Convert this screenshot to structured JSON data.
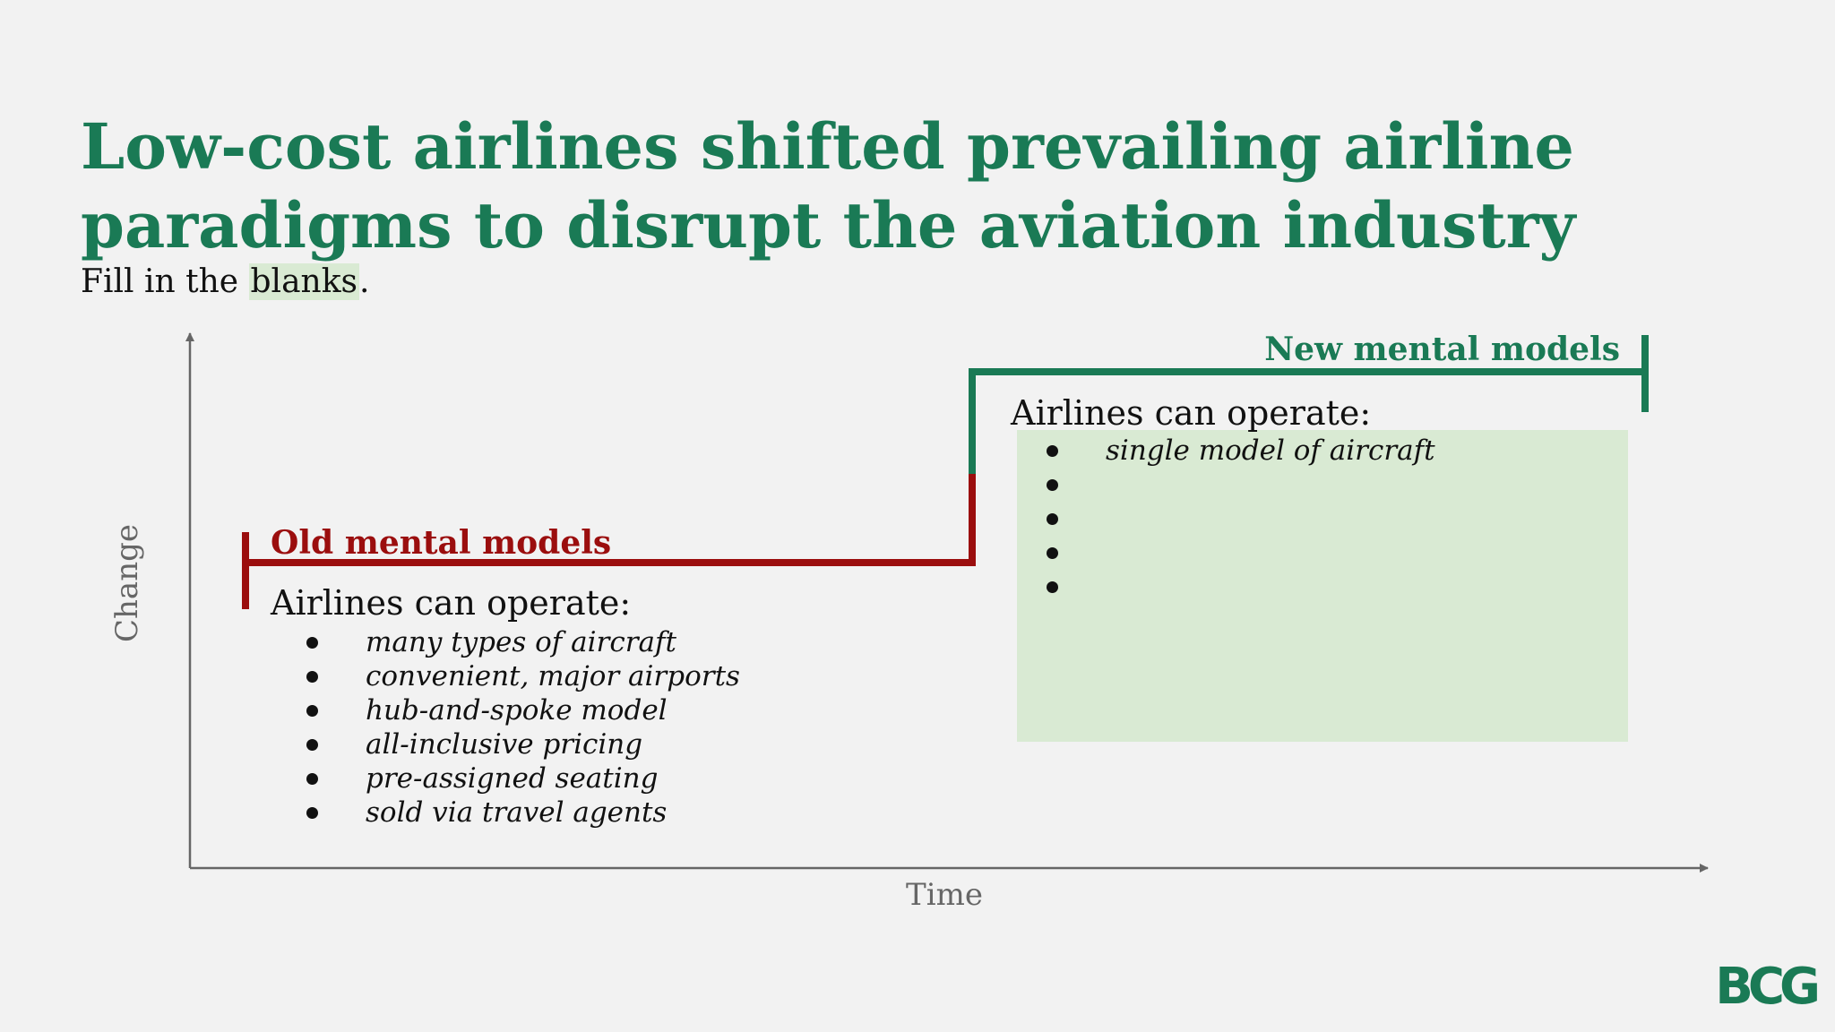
{
  "title": {
    "line1": "Low-cost airlines shifted prevailing airline",
    "line2": "paradigms to disrupt the aviation industry"
  },
  "subtitle": {
    "before": "Fill in the ",
    "highlight": "blanks",
    "after": "."
  },
  "diagram": {
    "y_axis_label": "Change",
    "x_axis_label": "Time",
    "old_model": {
      "heading": "Old mental models",
      "operate": "Airlines can operate:",
      "items": [
        "many types of aircraft",
        "convenient, major airports",
        "hub-and-spoke model",
        "all-inclusive pricing",
        "pre-assigned seating",
        "sold via travel agents"
      ]
    },
    "new_model": {
      "heading": "New mental models",
      "operate": "Airlines can operate:",
      "items": [
        "single model of aircraft",
        "",
        "",
        "",
        ""
      ]
    },
    "colors": {
      "old": "#9b0e0e",
      "new": "#1a7a55",
      "axis": "#666666",
      "fill_box": "#d9ead3"
    }
  },
  "logo": {
    "text": "BCG"
  }
}
